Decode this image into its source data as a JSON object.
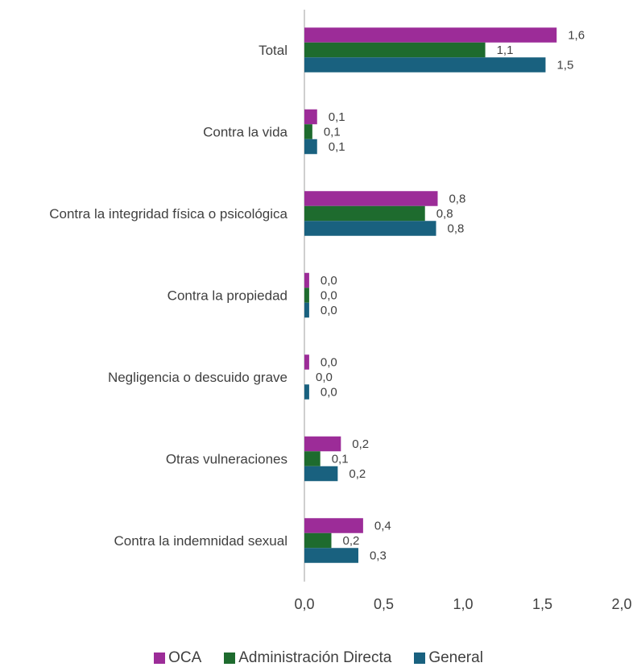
{
  "colors": {
    "oca": "#9c2c98",
    "admin": "#1e6b2e",
    "general": "#19617f",
    "axis": "#bfbfbf",
    "text": "#404040"
  },
  "chart_data": {
    "type": "bar",
    "orientation": "horizontal",
    "categories": [
      "Total",
      "Contra la vida",
      "Contra la integridad física o psicológica",
      "Contra la propiedad",
      "Negligencia o descuido grave",
      "Otras vulneraciones",
      "Contra la indemnidad sexual"
    ],
    "series": [
      {
        "name": "OCA",
        "values": [
          1.59,
          0.08,
          0.84,
          0.03,
          0.03,
          0.23,
          0.37
        ],
        "labels": [
          "1,6",
          "0,1",
          "0,8",
          "0,0",
          "0,0",
          "0,2",
          "0,4"
        ]
      },
      {
        "name": "Administración Directa",
        "values": [
          1.14,
          0.05,
          0.76,
          0.03,
          0.0,
          0.1,
          0.17
        ],
        "labels": [
          "1,1",
          "0,1",
          "0,8",
          "0,0",
          "0,0",
          "0,1",
          "0,2"
        ]
      },
      {
        "name": "General",
        "values": [
          1.52,
          0.08,
          0.83,
          0.03,
          0.03,
          0.21,
          0.34
        ],
        "labels": [
          "1,5",
          "0,1",
          "0,8",
          "0,0",
          "0,0",
          "0,2",
          "0,3"
        ]
      }
    ],
    "xlim": [
      0,
      2.0
    ],
    "xticks": [
      "0,0",
      "0,5",
      "1,0",
      "1,5",
      "2,0"
    ],
    "grid": false,
    "legend_position": "bottom"
  }
}
